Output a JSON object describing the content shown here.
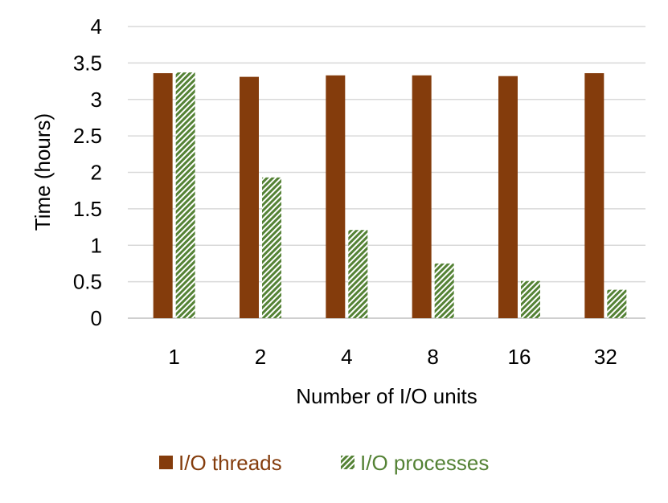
{
  "chart_data": {
    "type": "bar",
    "title": "",
    "xlabel": "Number of I/O units",
    "ylabel": "Time (hours)",
    "categories": [
      "1",
      "2",
      "4",
      "8",
      "16",
      "32"
    ],
    "series": [
      {
        "name": "I/O threads",
        "values": [
          3.36,
          3.31,
          3.33,
          3.33,
          3.32,
          3.36
        ],
        "color": "#843C0C",
        "pattern": "solid"
      },
      {
        "name": "I/O processes",
        "values": [
          3.37,
          1.93,
          1.21,
          0.75,
          0.51,
          0.39
        ],
        "color": "#548235",
        "pattern": "diagonal-hatch"
      }
    ],
    "ylim": [
      0,
      4
    ],
    "yticks": [
      "0",
      "0.5",
      "1",
      "1.5",
      "2",
      "2.5",
      "3",
      "3.5",
      "4"
    ],
    "grid": true,
    "legend_position": "bottom"
  }
}
